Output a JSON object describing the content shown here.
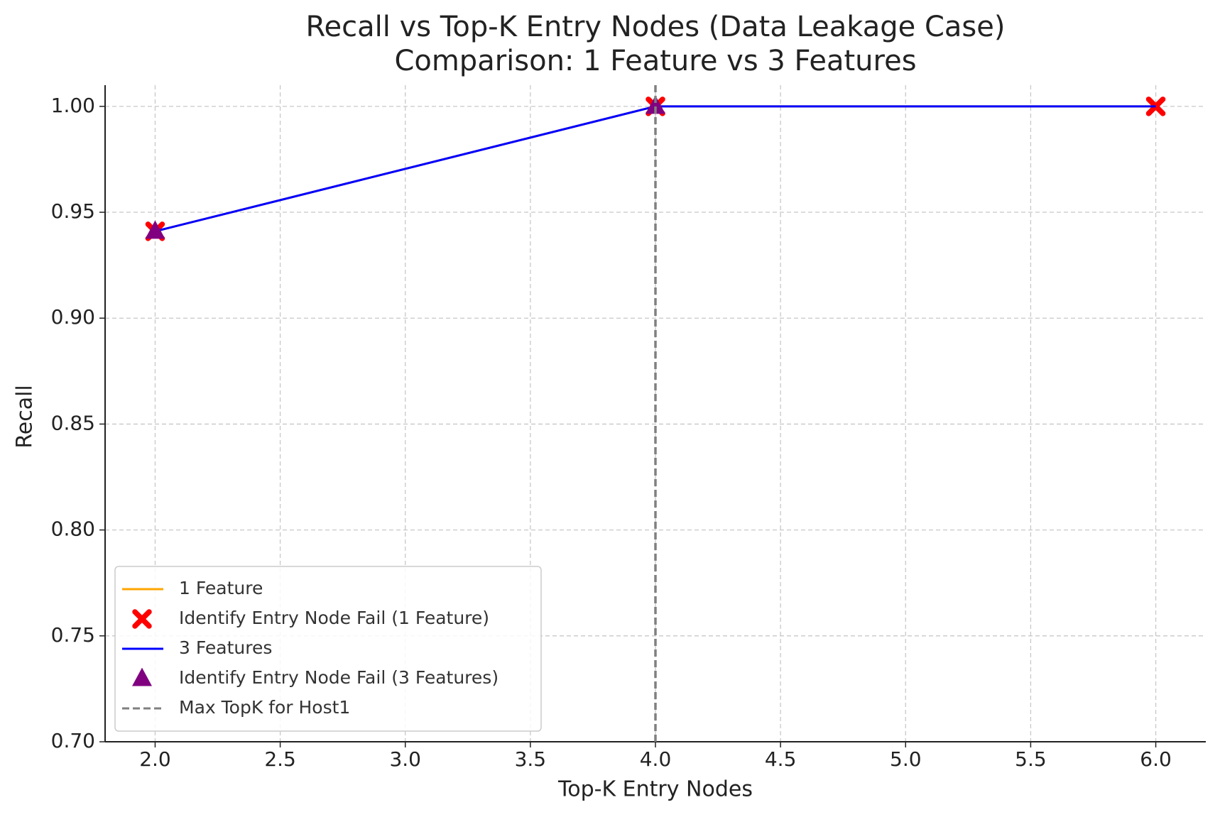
{
  "chart_data": {
    "type": "line",
    "title": "Recall vs Top-K Entry Nodes (Data Leakage Case)",
    "subtitle": "Comparison: 1 Feature vs 3 Features",
    "x_label": "Top-K Entry Nodes",
    "y_label": "Recall",
    "xlim": [
      1.8,
      6.2
    ],
    "ylim": [
      0.7,
      1.01
    ],
    "xticks": [
      {
        "value": 2,
        "label": "2.0"
      },
      {
        "value": 2.5,
        "label": "2.5"
      },
      {
        "value": 3,
        "label": "3.0"
      },
      {
        "value": 3.5,
        "label": "3.5"
      },
      {
        "value": 4,
        "label": "4.0"
      },
      {
        "value": 4.5,
        "label": "4.5"
      },
      {
        "value": 5,
        "label": "5.0"
      },
      {
        "value": 5.5,
        "label": "5.5"
      },
      {
        "value": 6,
        "label": "6.0"
      }
    ],
    "yticks": [
      {
        "value": 0.7,
        "label": "0.70"
      },
      {
        "value": 0.75,
        "label": "0.75"
      },
      {
        "value": 0.8,
        "label": "0.80"
      },
      {
        "value": 0.85,
        "label": "0.85"
      },
      {
        "value": 0.9,
        "label": "0.90"
      },
      {
        "value": 0.95,
        "label": "0.95"
      },
      {
        "value": 1,
        "label": "1.00"
      }
    ],
    "grid": true,
    "legend": "lower left",
    "series": [
      {
        "name": "1 Feature",
        "kind": "line",
        "color": "orange",
        "x": [
          2,
          4,
          6
        ],
        "values": [
          0.941,
          1,
          1
        ]
      },
      {
        "name": "Identify Entry Node Fail (1 Feature)",
        "kind": "x-marker",
        "color": "red",
        "x": [
          2,
          4,
          6
        ],
        "values": [
          0.941,
          1,
          1
        ]
      },
      {
        "name": "3 Features",
        "kind": "line",
        "color": "blue",
        "x": [
          2,
          4,
          6
        ],
        "values": [
          0.941,
          1,
          1
        ]
      },
      {
        "name": "Identify Entry Node Fail (3 Features)",
        "kind": "triangle-marker",
        "color": "purple",
        "x": [
          2,
          4
        ],
        "values": [
          0.941,
          1
        ]
      }
    ],
    "vlines": [
      {
        "name": "Max TopK for Host1",
        "x": 4,
        "color": "gray"
      }
    ]
  }
}
